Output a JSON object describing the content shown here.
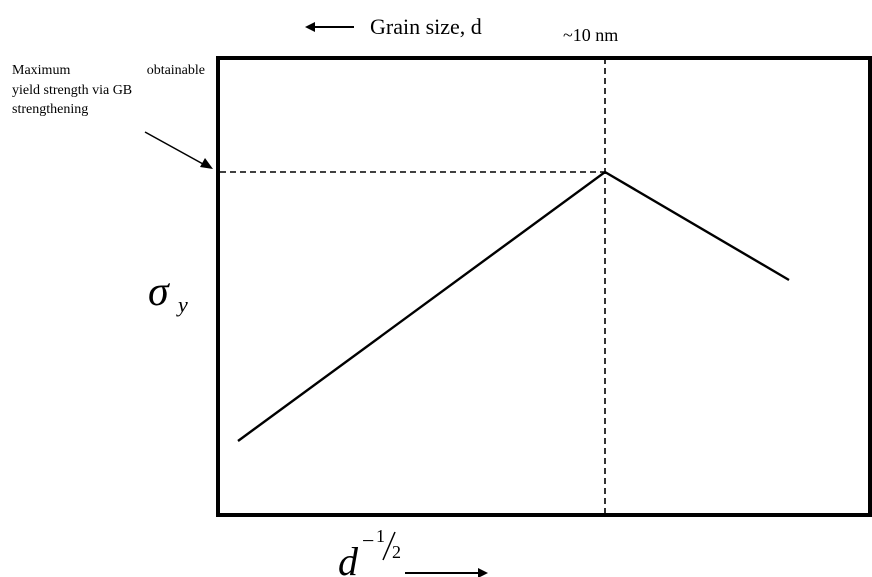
{
  "top_label": "Grain size, d",
  "peak_label": "~10 nm",
  "annotation": [
    "Maximum",
    "obtainable",
    "yield strength via GB",
    "strengthening"
  ],
  "y_axis_symbol": "σ",
  "y_axis_subscript": "y",
  "x_axis_base": "d",
  "x_axis_exponent_sign": "−",
  "x_axis_exponent_num": "1",
  "x_axis_exponent_den": "2",
  "colors": {
    "ink": "#000000",
    "background": "#ffffff"
  }
}
